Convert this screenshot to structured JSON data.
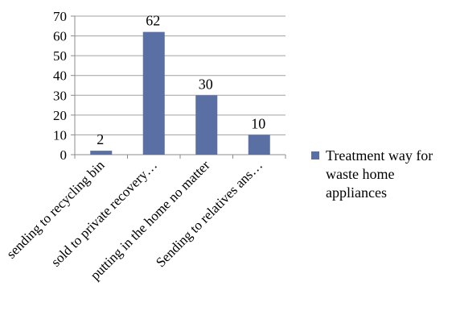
{
  "chart_data": {
    "type": "bar",
    "categories": [
      "sending to recycling bin",
      "sold to private recovery…",
      "putting in the home no matter",
      "Sending to relatives ans…"
    ],
    "series": [
      {
        "name": "Treatment way for waste home appliances",
        "values": [
          2,
          62,
          30,
          10
        ]
      }
    ],
    "data_labels": [
      "2",
      "62",
      "30",
      "10"
    ],
    "ylim": [
      0,
      70
    ],
    "yticks": [
      "0",
      "10",
      "20",
      "30",
      "40",
      "50",
      "60",
      "70"
    ],
    "grid": true,
    "legend_position": "right",
    "legend_lines": [
      "Treatment way for",
      "waste home",
      "appliances"
    ],
    "colors": {
      "bar": "#5a6fa3",
      "grid": "#a0a0a0",
      "axis": "#8c8c8c"
    }
  }
}
